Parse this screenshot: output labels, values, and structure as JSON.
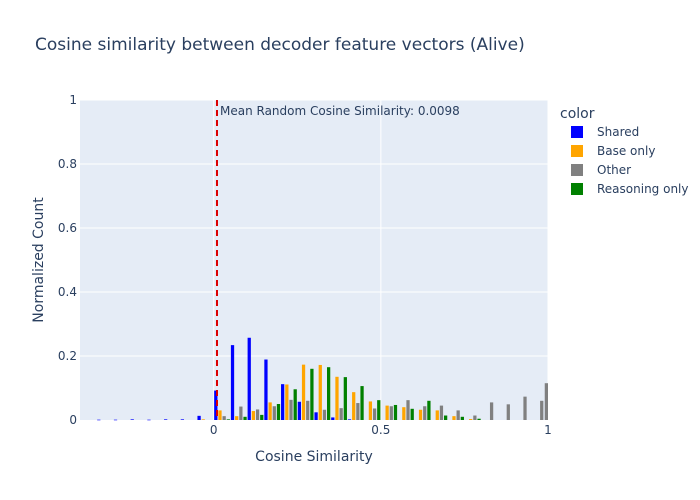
{
  "chart_data": {
    "type": "bar",
    "title": "Cosine similarity between decoder feature vectors (Alive)",
    "xlabel": "Cosine Similarity",
    "ylabel": "Normalized Count",
    "xlim": [
      -0.4,
      1.0
    ],
    "ylim": [
      0,
      1
    ],
    "xticks": [
      0,
      0.5,
      1
    ],
    "xtick_labels": [
      "0",
      "0.5",
      "1"
    ],
    "yticks": [
      0,
      0.2,
      0.4,
      0.6,
      0.8,
      1
    ],
    "ytick_labels": [
      "0",
      "0.2",
      "0.4",
      "0.6",
      "0.8",
      "1"
    ],
    "bin_width": 0.05,
    "grid": true,
    "legend_title": "color",
    "legend_position": "right",
    "annotation": {
      "text": "Mean Random Cosine Similarity: 0.0098",
      "x": 0.0098,
      "line_color": "#dd0000",
      "line_style": "dashed"
    },
    "series": [
      {
        "name": "Shared",
        "color": "#0000ff",
        "bins": [
          -0.35,
          -0.3,
          -0.25,
          -0.2,
          -0.15,
          -0.1,
          -0.05,
          0.0,
          0.05,
          0.1,
          0.15,
          0.2,
          0.25,
          0.3,
          0.35,
          0.4
        ],
        "values": [
          0.001,
          0.001,
          0.002,
          0.001,
          0.002,
          0.002,
          0.013,
          0.092,
          0.234,
          0.257,
          0.189,
          0.112,
          0.057,
          0.024,
          0.008,
          0.002
        ]
      },
      {
        "name": "Base only",
        "color": "#ffa500",
        "bins": [
          -0.05,
          0.0,
          0.05,
          0.1,
          0.15,
          0.2,
          0.25,
          0.3,
          0.35,
          0.4,
          0.45,
          0.5,
          0.55,
          0.6,
          0.65,
          0.7,
          0.75
        ],
        "values": [
          0.002,
          0.03,
          0.012,
          0.028,
          0.055,
          0.111,
          0.173,
          0.172,
          0.135,
          0.087,
          0.058,
          0.045,
          0.04,
          0.032,
          0.03,
          0.012,
          0.003
        ]
      },
      {
        "name": "Other",
        "color": "#808080",
        "bins": [
          0.0,
          0.05,
          0.1,
          0.15,
          0.2,
          0.25,
          0.3,
          0.35,
          0.4,
          0.45,
          0.5,
          0.55,
          0.6,
          0.65,
          0.7,
          0.75,
          0.8,
          0.85,
          0.9,
          0.95
        ],
        "values": [
          0.012,
          0.042,
          0.033,
          0.043,
          0.063,
          0.06,
          0.032,
          0.037,
          0.053,
          0.036,
          0.043,
          0.062,
          0.043,
          0.045,
          0.03,
          0.014,
          0.055,
          0.049,
          0.073,
          0.06
        ]
      },
      {
        "name": "Reasoning only",
        "color": "#008000",
        "bins": [
          0.0,
          0.05,
          0.1,
          0.15,
          0.2,
          0.25,
          0.3,
          0.35,
          0.4,
          0.45,
          0.5,
          0.55,
          0.6,
          0.65,
          0.7,
          0.75
        ],
        "values": [
          0.002,
          0.01,
          0.016,
          0.05,
          0.096,
          0.16,
          0.165,
          0.134,
          0.106,
          0.062,
          0.047,
          0.035,
          0.06,
          0.014,
          0.01,
          0.004
        ]
      }
    ],
    "extra_other_bar": {
      "bin": 0.95,
      "value": 0.115
    }
  }
}
